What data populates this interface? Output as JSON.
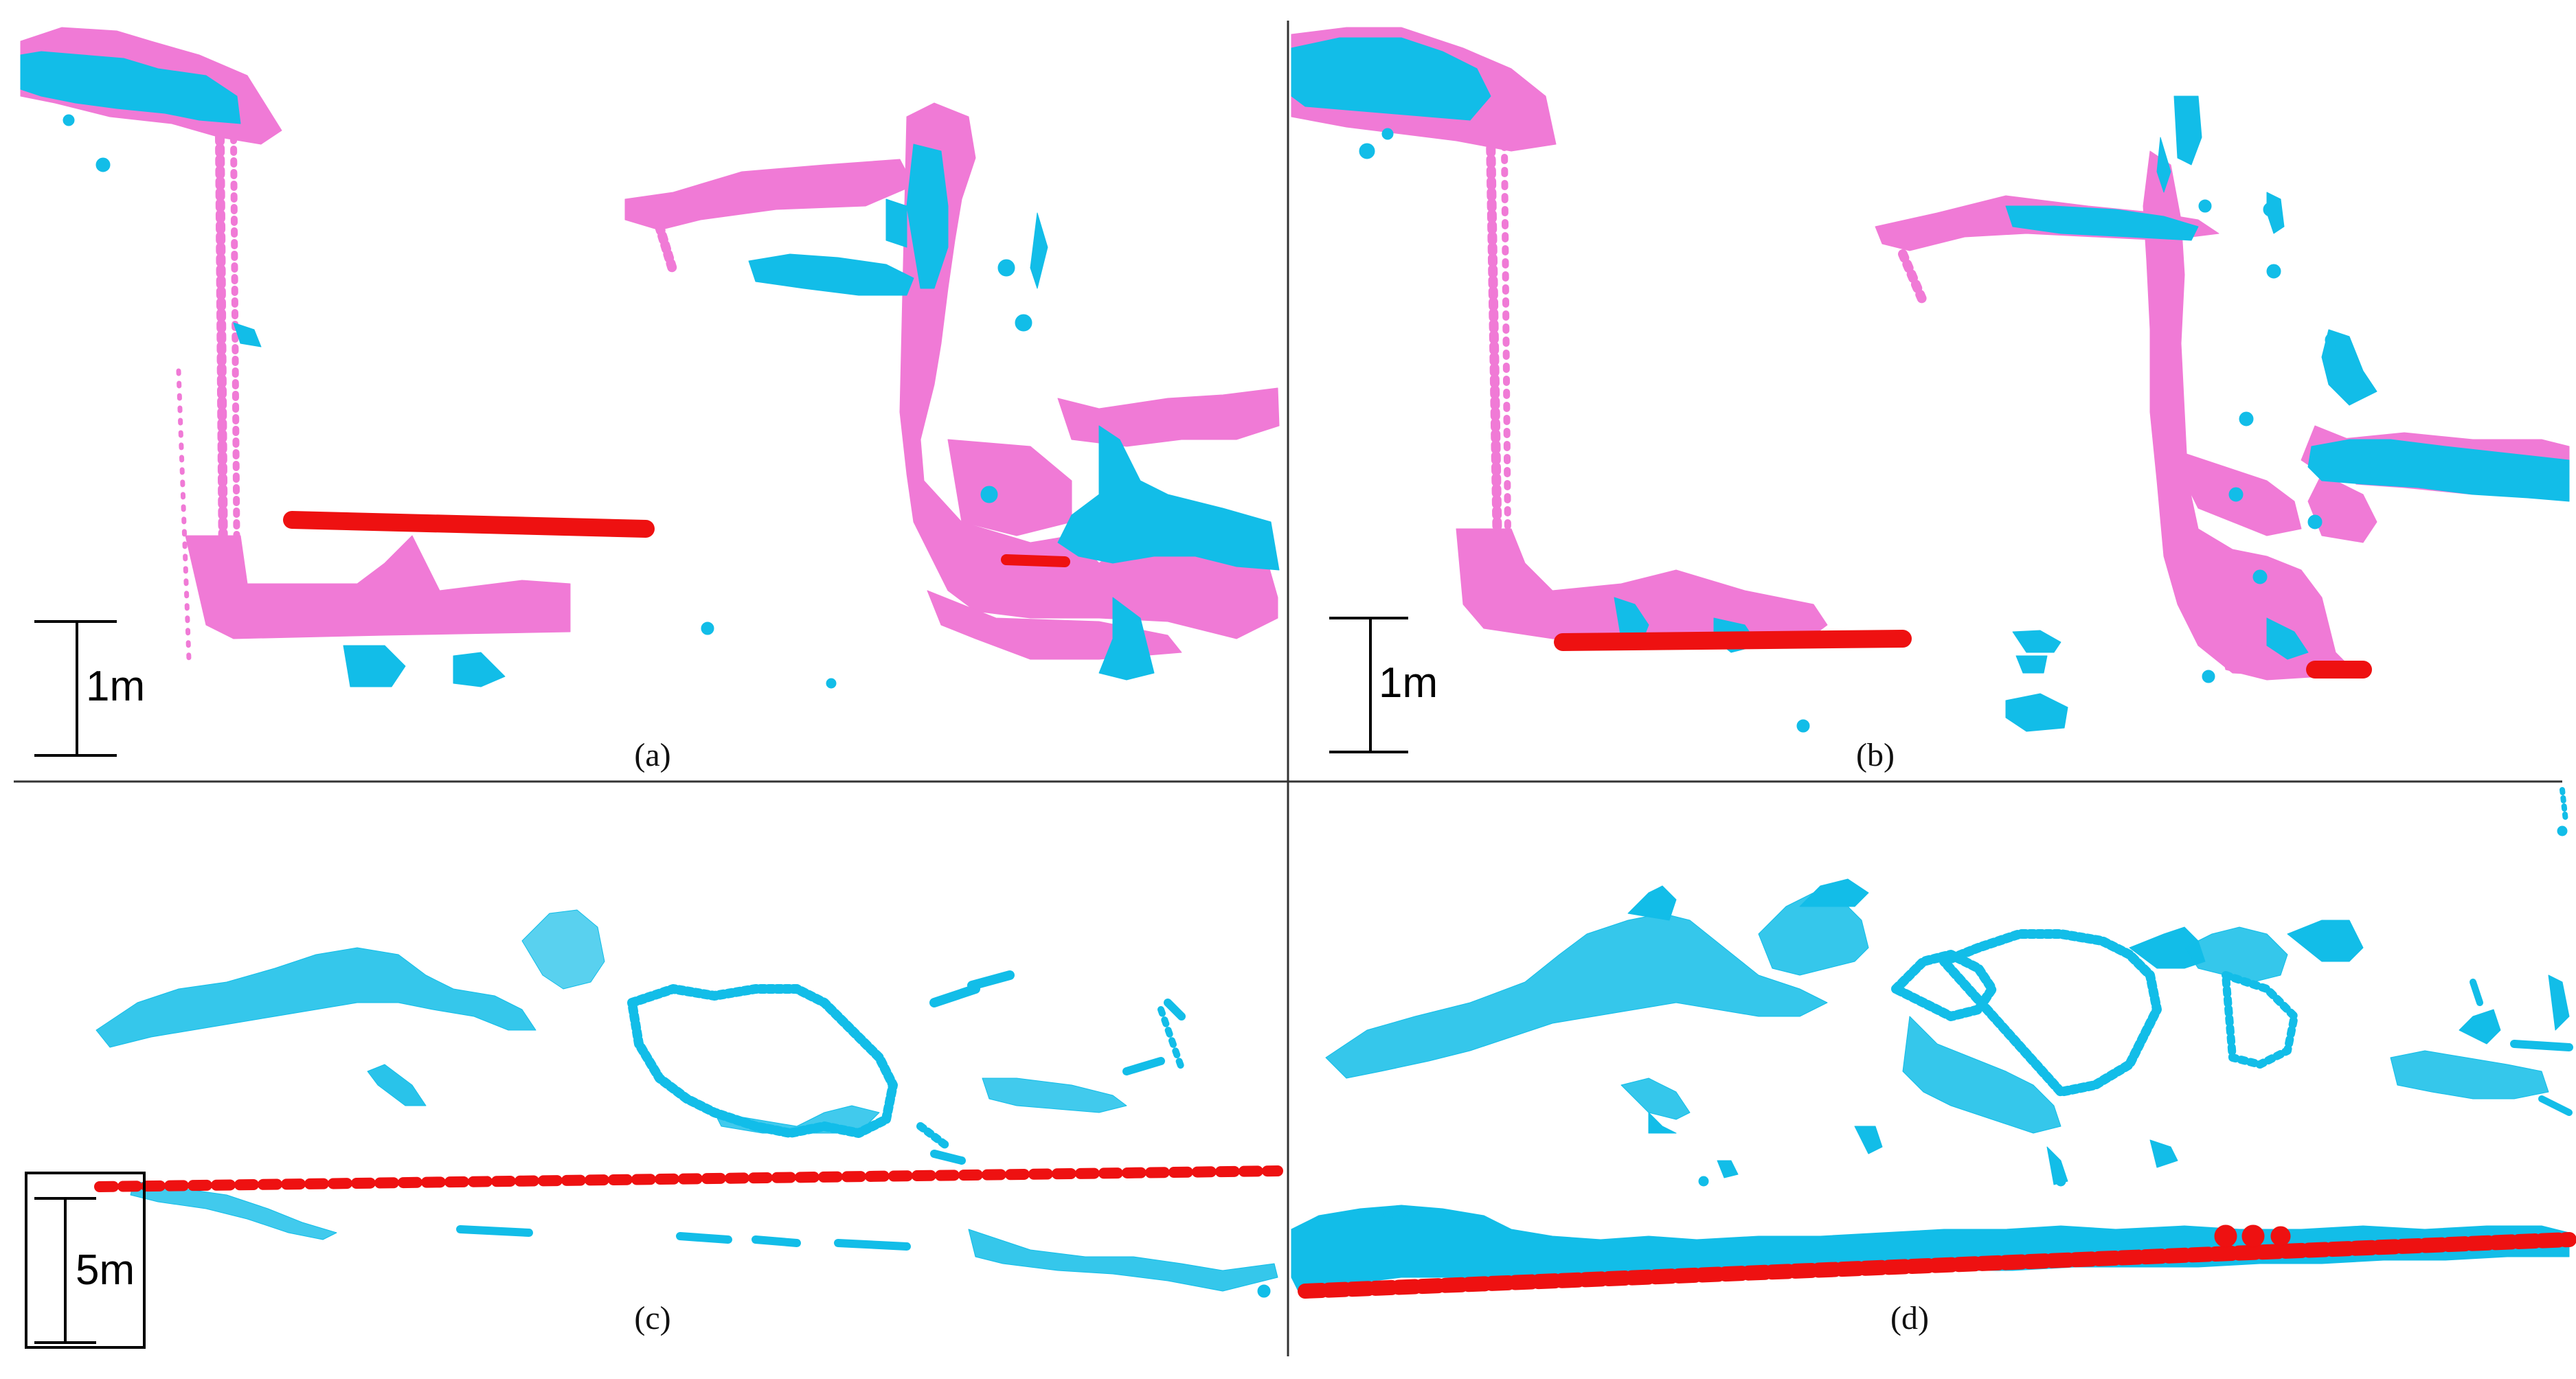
{
  "figure": {
    "panels": [
      {
        "id": "a",
        "label": "(a)",
        "scale_label": "1m"
      },
      {
        "id": "b",
        "label": "(b)",
        "scale_label": "1m"
      },
      {
        "id": "c",
        "label": "(c)",
        "scale_label": "5m"
      },
      {
        "id": "d",
        "label": "(d)",
        "scale_label": ""
      }
    ],
    "colors": {
      "pink": "#f07ad6",
      "cyan": "#12bde8",
      "red": "#ee1111",
      "divider": "#333333"
    }
  }
}
